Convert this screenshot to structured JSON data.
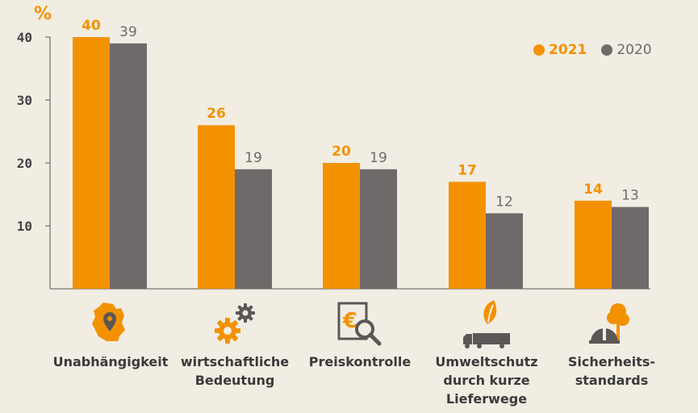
{
  "chart_data": {
    "type": "bar",
    "unit_label": "%",
    "categories": [
      "Unabhängigkeit",
      "wirtschaftliche\nBedeutung",
      "Preiskontrolle",
      "Umweltschutz\ndurch kurze\nLieferwege",
      "Sicherheits-\nstandards"
    ],
    "series": [
      {
        "name": "2021",
        "values": [
          40,
          26,
          20,
          17,
          14
        ],
        "color": "#f39200"
      },
      {
        "name": "2020",
        "values": [
          39,
          19,
          19,
          12,
          13
        ],
        "color": "#6f6a69"
      }
    ],
    "y_ticks": [
      10,
      20,
      30,
      40
    ],
    "ylim": [
      0,
      40
    ],
    "grid": false,
    "legend_position": "top-right"
  },
  "icons": [
    "germany-map-pin-icon",
    "gears-icon",
    "euro-magnifier-icon",
    "leaf-truck-icon",
    "helmet-tree-icon"
  ]
}
